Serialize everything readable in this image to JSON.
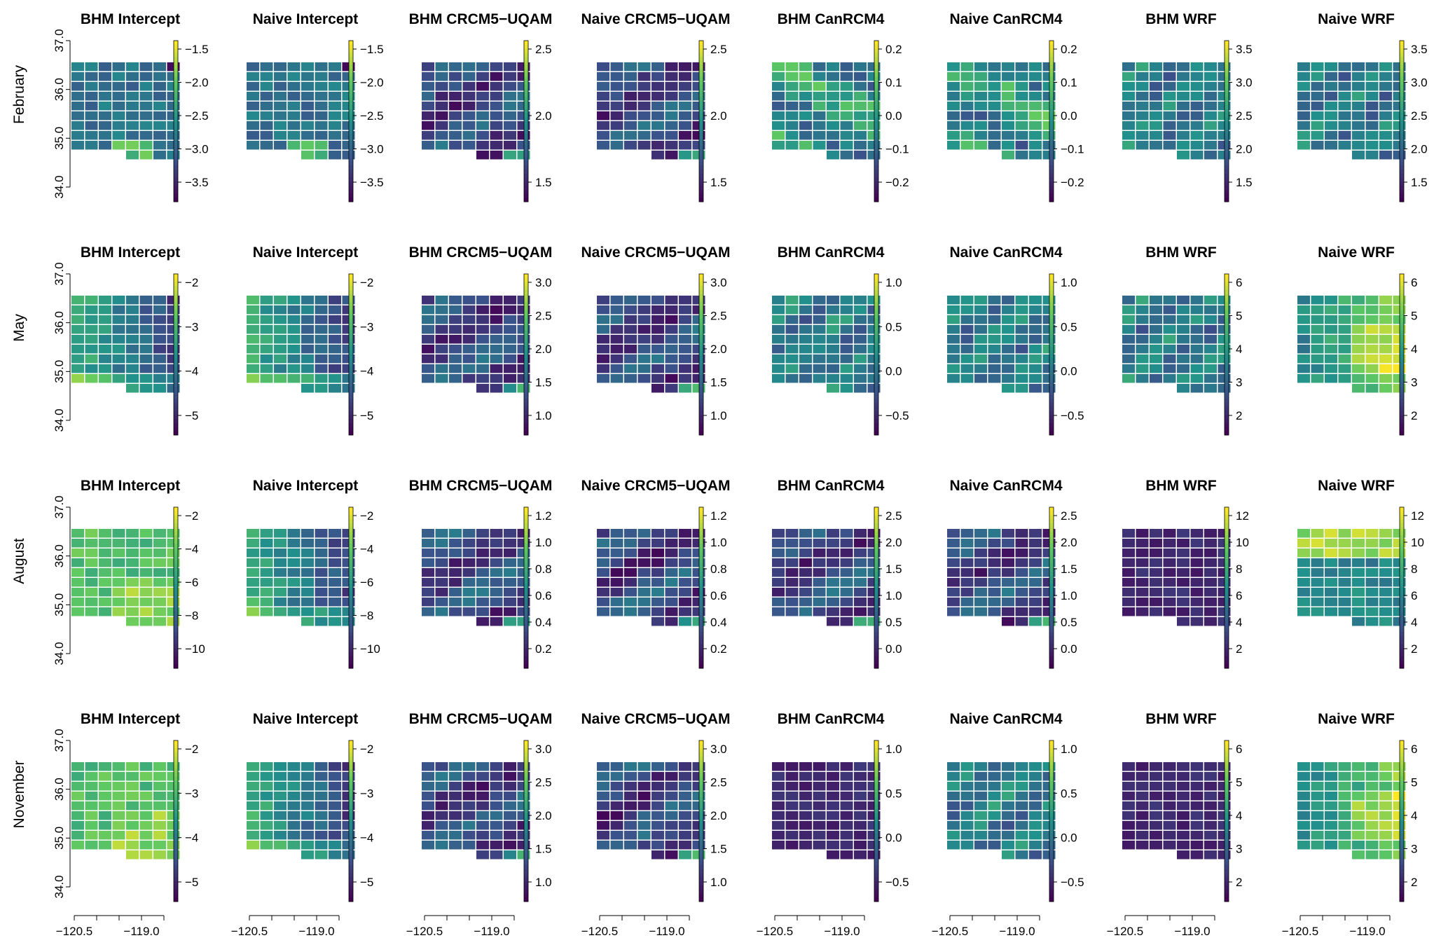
{
  "figure": {
    "row_labels": [
      "February",
      "May",
      "August",
      "November"
    ],
    "panel_titles": [
      "BHM Intercept",
      "Naive Intercept",
      "BHM CRCM5−UQAM",
      "Naive CRCM5−UQAM",
      "BHM CanRCM4",
      "Naive CanRCM4",
      "BHM WRF",
      "Naive WRF"
    ],
    "x_tick_labels": [
      "−120.5",
      "−119.0"
    ],
    "y_tick_labels": [
      "34.0",
      "35.0",
      "36.0",
      "37.0"
    ],
    "colormap": [
      "#440154",
      "#3b528b",
      "#21918c",
      "#5ec962",
      "#fde725"
    ]
  },
  "chart_data": {
    "type": "heatmap",
    "description_grid": "Each panel is a spatial grid map of coefficients over longitude -120.5 to -119.0 and latitude 34.0 to 37.0; cell colors estimated",
    "x_range": [
      -120.9,
      -118.7
    ],
    "y_range": [
      34.0,
      37.0
    ],
    "x_ticks": [
      -120.5,
      -119.0
    ],
    "y_ticks": [
      34.0,
      35.0,
      36.0,
      37.0
    ],
    "panels": [
      {
        "row": "February",
        "title": "BHM Intercept",
        "colorbar_ticks": [
          "−1.5",
          "−2.0",
          "−2.5",
          "−3.0",
          "−3.5"
        ],
        "range": [
          -3.9,
          -1.4
        ],
        "pattern": "feb_int_bhm"
      },
      {
        "row": "February",
        "title": "Naive Intercept",
        "colorbar_ticks": [
          "−1.5",
          "−2.0",
          "−2.5",
          "−3.0",
          "−3.5"
        ],
        "range": [
          -3.9,
          -1.4
        ],
        "pattern": "feb_int_naive"
      },
      {
        "row": "February",
        "title": "BHM CRCM5−UQAM",
        "colorbar_ticks": [
          "2.5",
          "2.0",
          "1.5"
        ],
        "range": [
          1.3,
          2.9
        ],
        "pattern": "low_mix"
      },
      {
        "row": "February",
        "title": "Naive CRCM5−UQAM",
        "colorbar_ticks": [
          "2.5",
          "2.0",
          "1.5"
        ],
        "range": [
          1.3,
          2.9
        ],
        "pattern": "low_mix"
      },
      {
        "row": "February",
        "title": "BHM CanRCM4",
        "colorbar_ticks": [
          "0.2",
          "0.1",
          "0.0",
          "−0.1",
          "−0.2"
        ],
        "range": [
          -0.25,
          0.28
        ],
        "pattern": "mid_mix"
      },
      {
        "row": "February",
        "title": "Naive CanRCM4",
        "colorbar_ticks": [
          "0.2",
          "0.1",
          "0.0",
          "−0.1",
          "−0.2"
        ],
        "range": [
          -0.25,
          0.28
        ],
        "pattern": "mid_mix"
      },
      {
        "row": "February",
        "title": "BHM WRF",
        "colorbar_ticks": [
          "3.5",
          "3.0",
          "2.5",
          "2.0",
          "1.5"
        ],
        "range": [
          1.3,
          3.95
        ],
        "pattern": "teal_mix"
      },
      {
        "row": "February",
        "title": "Naive WRF",
        "colorbar_ticks": [
          "3.5",
          "3.0",
          "2.5",
          "2.0",
          "1.5"
        ],
        "range": [
          1.3,
          3.95
        ],
        "pattern": "teal_mix"
      },
      {
        "row": "May",
        "title": "BHM Intercept",
        "colorbar_ticks": [
          "−2",
          "−3",
          "−4",
          "−5"
        ],
        "range": [
          -5.9,
          -1.9
        ],
        "pattern": "green_west"
      },
      {
        "row": "May",
        "title": "Naive Intercept",
        "colorbar_ticks": [
          "−2",
          "−3",
          "−4",
          "−5"
        ],
        "range": [
          -5.9,
          -1.9
        ],
        "pattern": "green_west"
      },
      {
        "row": "May",
        "title": "BHM CRCM5−UQAM",
        "colorbar_ticks": [
          "3.0",
          "2.5",
          "2.0",
          "1.5",
          "1.0"
        ],
        "range": [
          0.8,
          3.2
        ],
        "pattern": "low_mix"
      },
      {
        "row": "May",
        "title": "Naive CRCM5−UQAM",
        "colorbar_ticks": [
          "3.0",
          "2.5",
          "2.0",
          "1.5",
          "1.0"
        ],
        "range": [
          0.8,
          3.2
        ],
        "pattern": "low_mix"
      },
      {
        "row": "May",
        "title": "BHM CanRCM4",
        "colorbar_ticks": [
          "1.0",
          "0.5",
          "0.0",
          "−0.5"
        ],
        "range": [
          -0.6,
          1.25
        ],
        "pattern": "teal_mix"
      },
      {
        "row": "May",
        "title": "Naive CanRCM4",
        "colorbar_ticks": [
          "1.0",
          "0.5",
          "0.0",
          "−0.5"
        ],
        "range": [
          -0.6,
          1.25
        ],
        "pattern": "teal_mix"
      },
      {
        "row": "May",
        "title": "BHM WRF",
        "colorbar_ticks": [
          "6",
          "5",
          "4",
          "3",
          "2"
        ],
        "range": [
          1.5,
          6.4
        ],
        "pattern": "teal_mix"
      },
      {
        "row": "May",
        "title": "Naive WRF",
        "colorbar_ticks": [
          "6",
          "5",
          "4",
          "3",
          "2"
        ],
        "range": [
          1.5,
          6.4
        ],
        "pattern": "yellow_east"
      },
      {
        "row": "August",
        "title": "BHM Intercept",
        "colorbar_ticks": [
          "−2",
          "−4",
          "−6",
          "−8",
          "−10"
        ],
        "range": [
          -10.5,
          -1.2
        ],
        "pattern": "green_all"
      },
      {
        "row": "August",
        "title": "Naive Intercept",
        "colorbar_ticks": [
          "−2",
          "−4",
          "−6",
          "−8",
          "−10"
        ],
        "range": [
          -10.5,
          -1.2
        ],
        "pattern": "green_west"
      },
      {
        "row": "August",
        "title": "BHM CRCM5−UQAM",
        "colorbar_ticks": [
          "1.2",
          "1.0",
          "0.8",
          "0.6",
          "0.4",
          "0.2"
        ],
        "range": [
          0.05,
          1.22
        ],
        "pattern": "low_mix"
      },
      {
        "row": "August",
        "title": "Naive CRCM5−UQAM",
        "colorbar_ticks": [
          "1.2",
          "1.0",
          "0.8",
          "0.6",
          "0.4",
          "0.2"
        ],
        "range": [
          0.05,
          1.22
        ],
        "pattern": "low_mix"
      },
      {
        "row": "August",
        "title": "BHM CanRCM4",
        "colorbar_ticks": [
          "2.5",
          "2.0",
          "1.5",
          "1.0",
          "0.5",
          "0.0"
        ],
        "range": [
          -0.1,
          2.75
        ],
        "pattern": "low_mix"
      },
      {
        "row": "August",
        "title": "Naive CanRCM4",
        "colorbar_ticks": [
          "2.5",
          "2.0",
          "1.5",
          "1.0",
          "0.5",
          "0.0"
        ],
        "range": [
          -0.1,
          2.75
        ],
        "pattern": "low_mix"
      },
      {
        "row": "August",
        "title": "BHM WRF",
        "colorbar_ticks": [
          "12",
          "10",
          "8",
          "6",
          "4",
          "2"
        ],
        "range": [
          2,
          12.8
        ],
        "pattern": "low_all"
      },
      {
        "row": "August",
        "title": "Naive WRF",
        "colorbar_ticks": [
          "12",
          "10",
          "8",
          "6",
          "4",
          "2"
        ],
        "range": [
          2,
          12.8
        ],
        "pattern": "yellow_north"
      },
      {
        "row": "November",
        "title": "BHM Intercept",
        "colorbar_ticks": [
          "−2",
          "−3",
          "−4",
          "−5"
        ],
        "range": [
          -5.9,
          -1.9
        ],
        "pattern": "green_all"
      },
      {
        "row": "November",
        "title": "Naive Intercept",
        "colorbar_ticks": [
          "−2",
          "−3",
          "−4",
          "−5"
        ],
        "range": [
          -5.9,
          -1.9
        ],
        "pattern": "green_west"
      },
      {
        "row": "November",
        "title": "BHM CRCM5−UQAM",
        "colorbar_ticks": [
          "3.0",
          "2.5",
          "2.0",
          "1.5",
          "1.0"
        ],
        "range": [
          0.8,
          3.2
        ],
        "pattern": "low_mix"
      },
      {
        "row": "November",
        "title": "Naive CRCM5−UQAM",
        "colorbar_ticks": [
          "3.0",
          "2.5",
          "2.0",
          "1.5",
          "1.0"
        ],
        "range": [
          0.8,
          3.2
        ],
        "pattern": "low_mix"
      },
      {
        "row": "November",
        "title": "BHM CanRCM4",
        "colorbar_ticks": [
          "1.0",
          "0.5",
          "0.0",
          "−0.5"
        ],
        "range": [
          -0.6,
          1.25
        ],
        "pattern": "low_all"
      },
      {
        "row": "November",
        "title": "Naive CanRCM4",
        "colorbar_ticks": [
          "1.0",
          "0.5",
          "0.0",
          "−0.5"
        ],
        "range": [
          -0.6,
          1.25
        ],
        "pattern": "teal_mix"
      },
      {
        "row": "November",
        "title": "BHM WRF",
        "colorbar_ticks": [
          "6",
          "5",
          "4",
          "3",
          "2"
        ],
        "range": [
          1.5,
          6.4
        ],
        "pattern": "low_all"
      },
      {
        "row": "November",
        "title": "Naive WRF",
        "colorbar_ticks": [
          "6",
          "5",
          "4",
          "3",
          "2"
        ],
        "range": [
          1.5,
          6.4
        ],
        "pattern": "yellow_east"
      }
    ]
  }
}
